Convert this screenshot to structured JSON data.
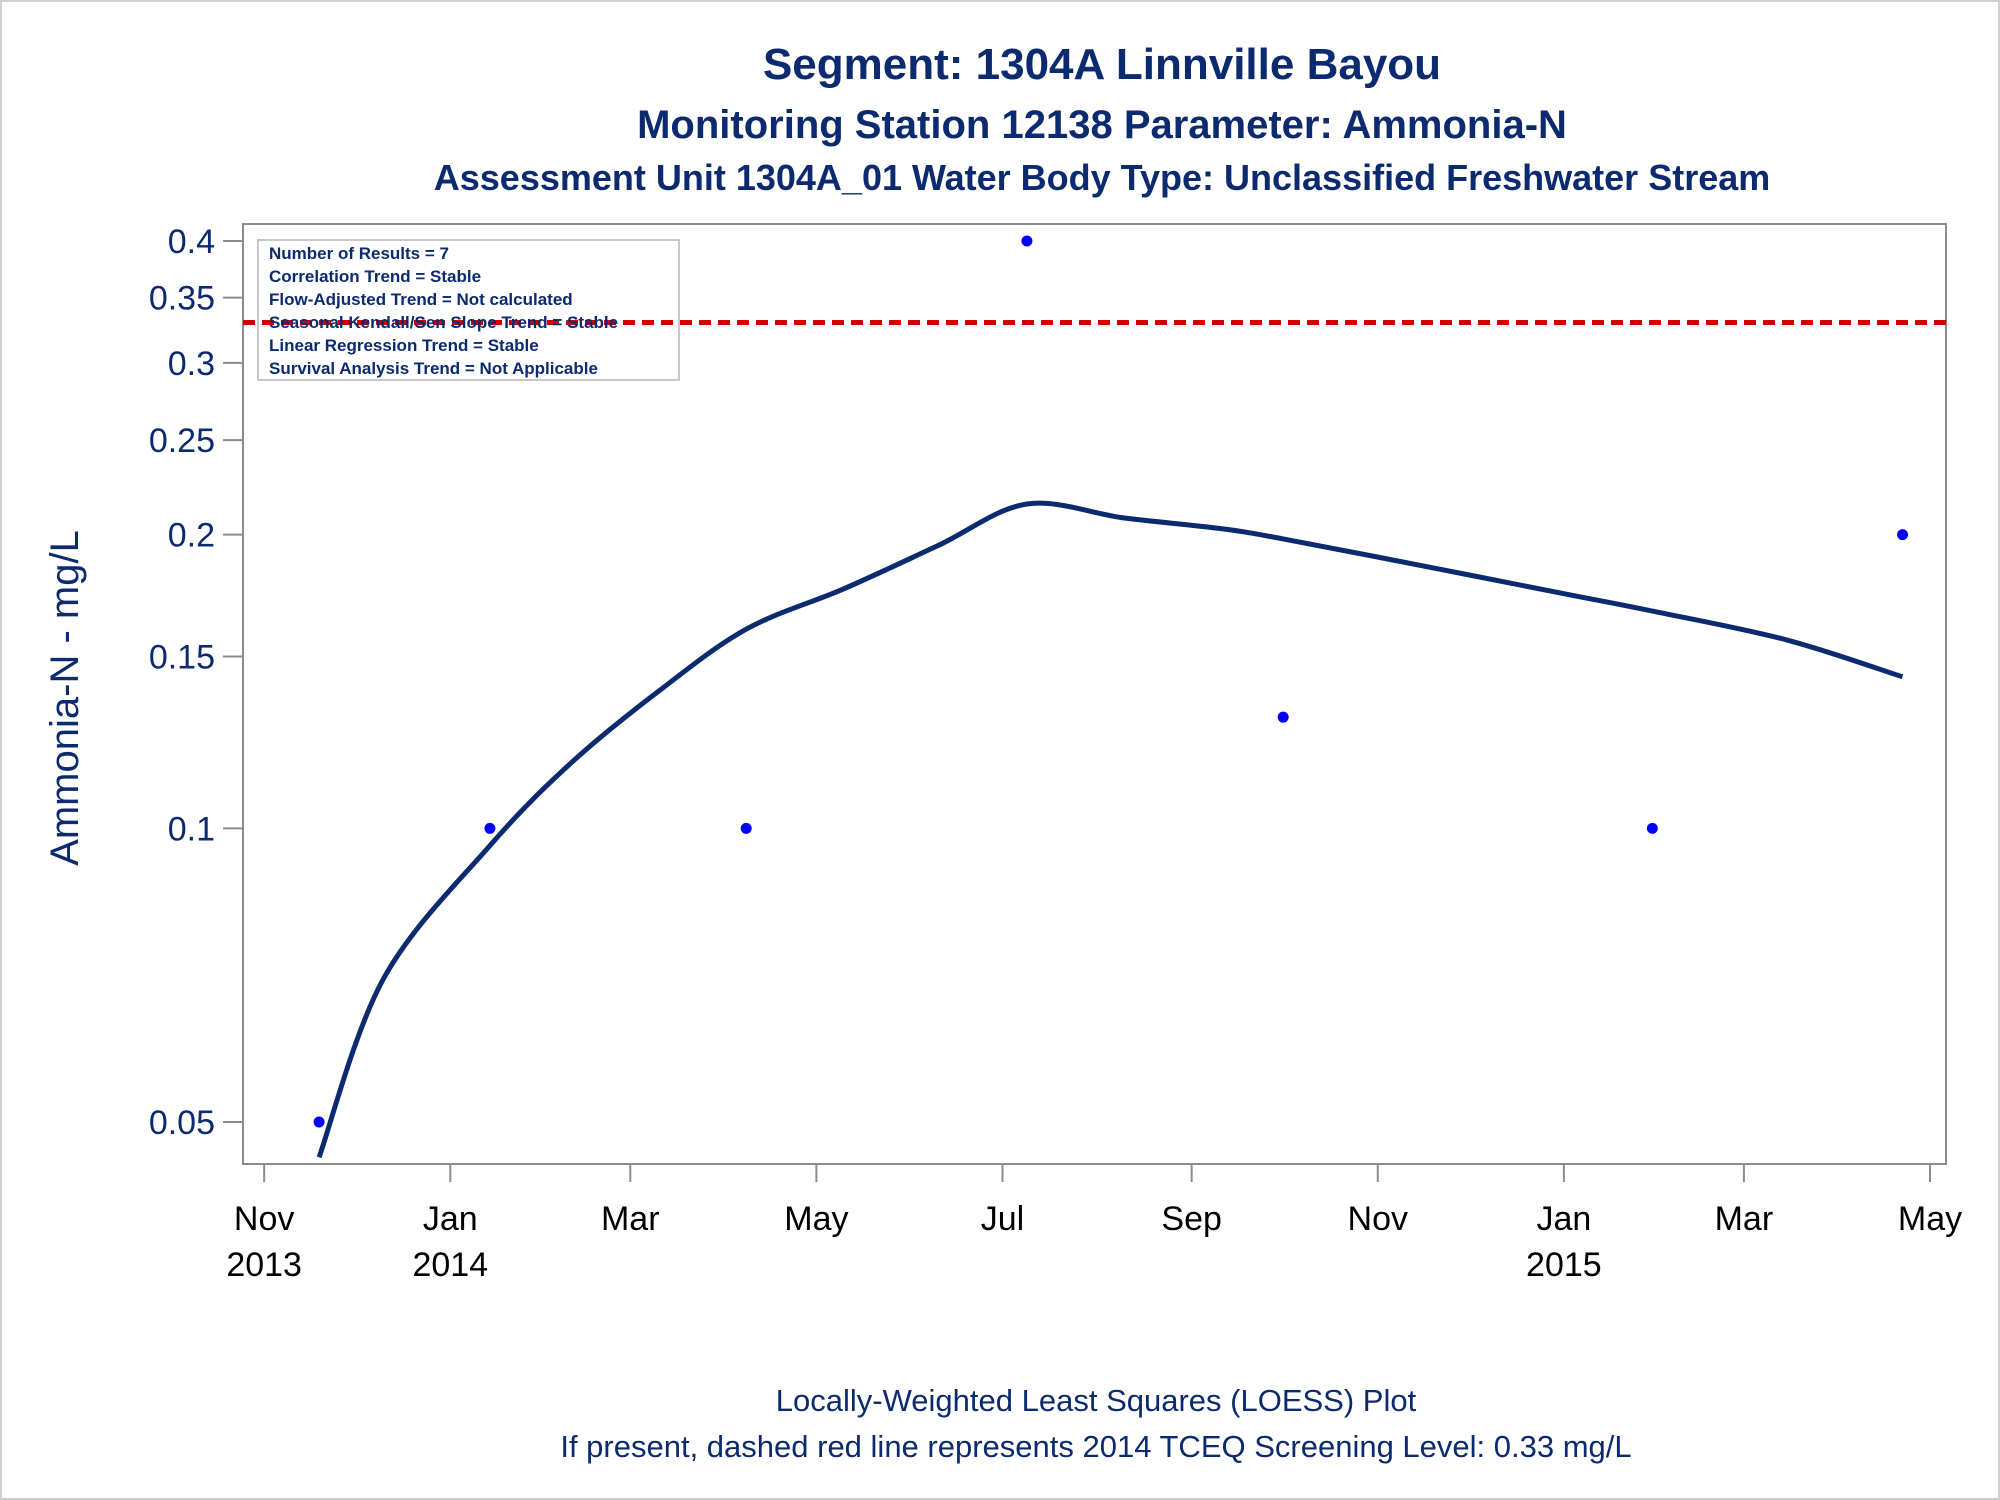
{
  "chart_data": {
    "type": "scatter",
    "title": "Segment: 1304A  Linnville Bayou",
    "subtitle": "Monitoring Station 12138 Parameter: Ammonia-N",
    "subtitle2": "Assessment Unit 1304A_01   Water Body Type: Unclassified Freshwater Stream",
    "ylabel": "Ammonia-N - mg/L",
    "y_scale": "log",
    "ylim": [
      0.045,
      0.4
    ],
    "y_ticks": [
      {
        "value": 0.05,
        "label": "0.05"
      },
      {
        "value": 0.1,
        "label": "0.1"
      },
      {
        "value": 0.15,
        "label": "0.15"
      },
      {
        "value": 0.2,
        "label": "0.2"
      },
      {
        "value": 0.25,
        "label": "0.25"
      },
      {
        "value": 0.3,
        "label": "0.3"
      },
      {
        "value": 0.35,
        "label": "0.35"
      },
      {
        "value": 0.4,
        "label": "0.4"
      }
    ],
    "xlim": [
      "2013-10-29",
      "2015-05-01"
    ],
    "x_ticks": [
      {
        "date": "2013-11-01",
        "label": "Nov",
        "year": "2013"
      },
      {
        "date": "2014-01-01",
        "label": "Jan",
        "year": "2014"
      },
      {
        "date": "2014-03-01",
        "label": "Mar",
        "year": ""
      },
      {
        "date": "2014-05-01",
        "label": "May",
        "year": ""
      },
      {
        "date": "2014-07-01",
        "label": "Jul",
        "year": ""
      },
      {
        "date": "2014-09-01",
        "label": "Sep",
        "year": ""
      },
      {
        "date": "2014-11-01",
        "label": "Nov",
        "year": ""
      },
      {
        "date": "2015-01-01",
        "label": "Jan",
        "year": "2015"
      },
      {
        "date": "2015-03-01",
        "label": "Mar",
        "year": ""
      },
      {
        "date": "2015-05-01",
        "label": "May",
        "year": ""
      }
    ],
    "points": [
      {
        "date": "2013-11-19",
        "value": 0.05
      },
      {
        "date": "2014-01-14",
        "value": 0.1
      },
      {
        "date": "2014-04-08",
        "value": 0.1
      },
      {
        "date": "2014-07-09",
        "value": 0.4
      },
      {
        "date": "2014-10-01",
        "value": 0.13
      },
      {
        "date": "2015-01-30",
        "value": 0.1
      },
      {
        "date": "2015-04-22",
        "value": 0.2
      }
    ],
    "loess_curve": [
      {
        "date": "2013-11-19",
        "value": 0.046
      },
      {
        "date": "2013-12-10",
        "value": 0.07
      },
      {
        "date": "2014-01-14",
        "value": 0.096
      },
      {
        "date": "2014-02-10",
        "value": 0.117
      },
      {
        "date": "2014-03-10",
        "value": 0.138
      },
      {
        "date": "2014-04-08",
        "value": 0.16
      },
      {
        "date": "2014-05-10",
        "value": 0.176
      },
      {
        "date": "2014-06-10",
        "value": 0.195
      },
      {
        "date": "2014-07-09",
        "value": 0.215
      },
      {
        "date": "2014-08-10",
        "value": 0.208
      },
      {
        "date": "2014-09-10",
        "value": 0.203
      },
      {
        "date": "2014-10-01",
        "value": 0.198
      },
      {
        "date": "2014-11-15",
        "value": 0.186
      },
      {
        "date": "2015-01-01",
        "value": 0.174
      },
      {
        "date": "2015-01-30",
        "value": 0.167
      },
      {
        "date": "2015-03-15",
        "value": 0.156
      },
      {
        "date": "2015-04-22",
        "value": 0.143
      }
    ],
    "reference_line": {
      "value": 0.33,
      "color": "#d00000",
      "style": "dashed"
    },
    "stats_box": [
      "Number of Results = 7",
      "Correlation Trend = Stable",
      "Flow-Adjusted Trend = Not calculated",
      "Seasonal Kendall/Sen Slope Trend = Stable",
      "Linear Regression Trend = Stable",
      "Survival Analysis Trend = Not Applicable"
    ],
    "footnotes": [
      "Locally-Weighted Least Squares (LOESS) Plot",
      "If present, dashed red line represents 2014 TCEQ Screening Level: 0.33 mg/L"
    ],
    "colors": {
      "text": "#0b2a6f",
      "points": "#0000ff",
      "curve": "#0b2a6f",
      "axis": "#8c8c8c"
    }
  }
}
